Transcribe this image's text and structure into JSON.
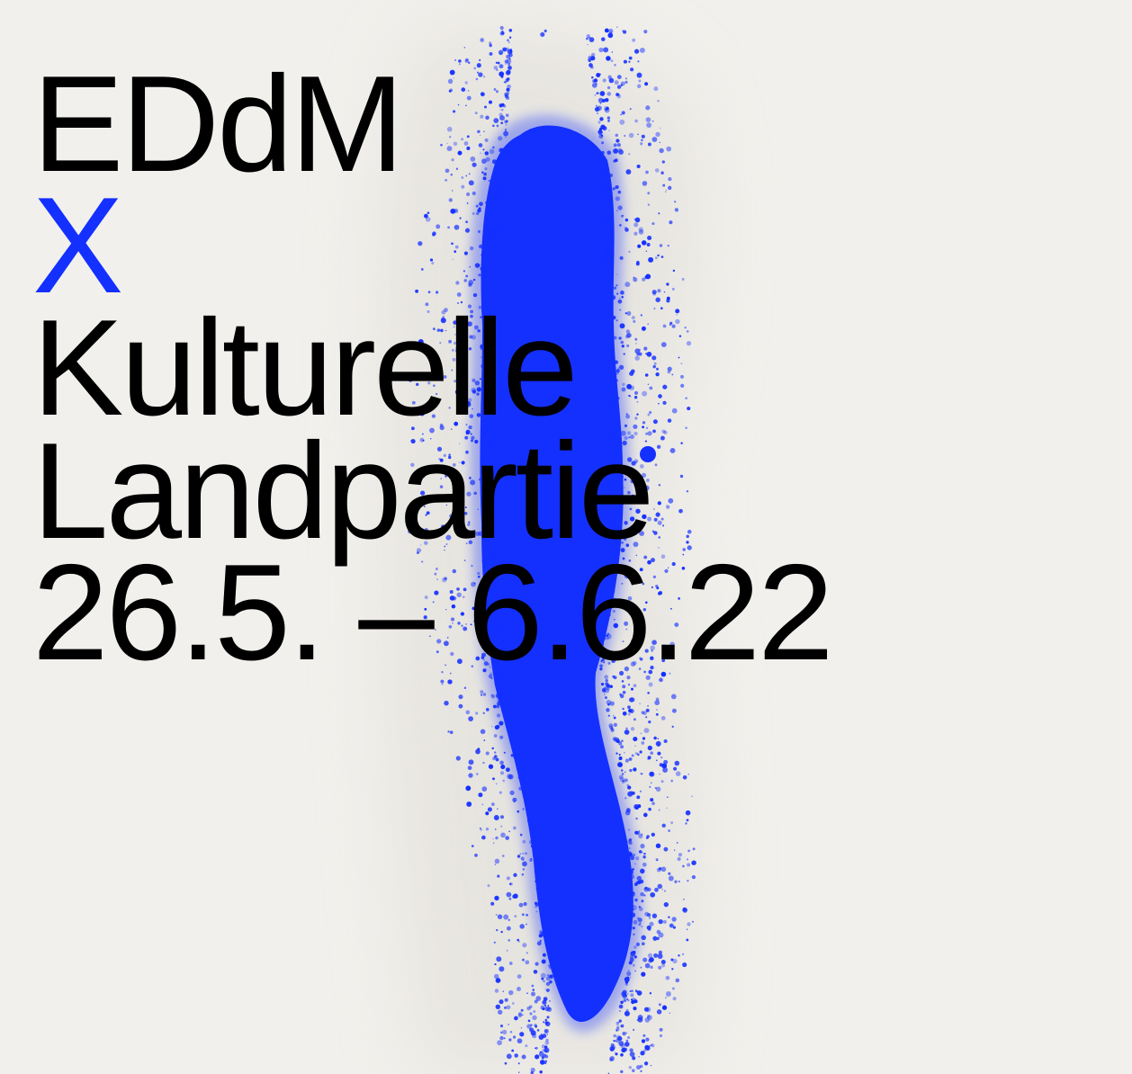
{
  "poster": {
    "headline": {
      "line_1": "EDdM",
      "line_2": "X",
      "line_3": "Kulturelle",
      "line_4": "Landpartie",
      "line_5": "26.5. – 6.6.22"
    }
  },
  "colors": {
    "background": "#f2f0ec",
    "text": "#000000",
    "accent": "#1430ff"
  }
}
